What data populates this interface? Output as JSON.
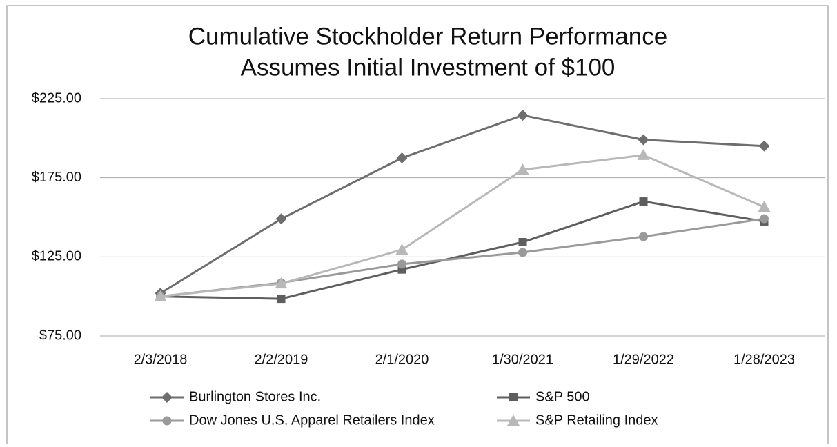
{
  "chart_data": {
    "type": "line",
    "title": [
      "Cumulative Stockholder Return Performance",
      "Assumes Initial Investment of $100"
    ],
    "categories": [
      "2/3/2018",
      "2/2/2019",
      "2/1/2020",
      "1/30/2021",
      "1/29/2022",
      "1/28/2023"
    ],
    "series": [
      {
        "name": "Burlington Stores Inc.",
        "color": "#6e6e6e",
        "marker": "diamond",
        "values": [
          102,
          149,
          187.5,
          214.5,
          199,
          195
        ]
      },
      {
        "name": "S&P 500",
        "color": "#5e5e5e",
        "marker": "square",
        "values": [
          100,
          98.5,
          117,
          134.3,
          160,
          147.4
        ]
      },
      {
        "name": "Dow Jones U.S. Apparel Retailers Index",
        "color": "#9a9a9a",
        "marker": "circle",
        "values": [
          100,
          108.6,
          120.4,
          127.8,
          137.8,
          149.1
        ]
      },
      {
        "name": "S&P Retailing Index",
        "color": "#b8b8b8",
        "marker": "triangle",
        "values": [
          100,
          108.1,
          129.5,
          180.1,
          189.3,
          156.5
        ]
      }
    ],
    "ylim": [
      75,
      225
    ],
    "yticks": [
      {
        "value": 75,
        "label": "$75.00"
      },
      {
        "value": 125,
        "label": "$125.00"
      },
      {
        "value": 175,
        "label": "$175.00"
      },
      {
        "value": 225,
        "label": "$225.00"
      }
    ],
    "grid": true,
    "legend": "bottom"
  }
}
